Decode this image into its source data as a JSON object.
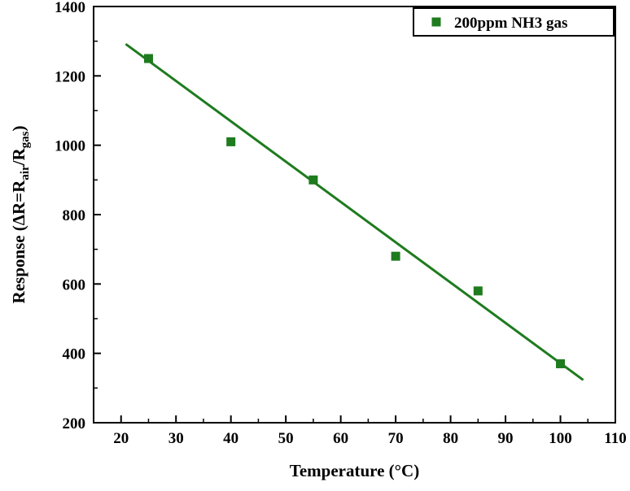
{
  "colors": {
    "accent_green": "#1e7b1e",
    "axis": "#000000",
    "background": "#ffffff"
  },
  "chart_data": {
    "type": "scatter",
    "title": "",
    "xlabel": "Temperature (°C)",
    "ylabel_parts": [
      {
        "t": "Response (",
        "sub": false
      },
      {
        "t": "ΔR=R",
        "sub": false
      },
      {
        "t": "air",
        "sub": true
      },
      {
        "t": "/R",
        "sub": false
      },
      {
        "t": "gas",
        "sub": true
      },
      {
        "t": ")",
        "sub": false
      }
    ],
    "xlim": [
      15,
      110
    ],
    "ylim": [
      200,
      1400
    ],
    "x_ticks": [
      20,
      30,
      40,
      50,
      60,
      70,
      80,
      90,
      100,
      110
    ],
    "y_ticks": [
      200,
      400,
      600,
      800,
      1000,
      1200,
      1400
    ],
    "x_minor_step": 5,
    "y_minor_step": 100,
    "grid": false,
    "series": [
      {
        "name": "linear fit",
        "kind": "line",
        "color": "#1e7b1e",
        "x": [
          21,
          104
        ],
        "y": [
          1290,
          325
        ]
      },
      {
        "name": "200ppm NH3 gas",
        "kind": "scatter",
        "marker": "square",
        "color": "#1e7b1e",
        "x": [
          25,
          40,
          55,
          70,
          85,
          100
        ],
        "y": [
          1250,
          1010,
          900,
          680,
          580,
          370
        ]
      }
    ],
    "legend": {
      "position": "top-right",
      "entries": [
        {
          "label": "200ppm NH3 gas",
          "marker": "square",
          "color": "#1e7b1e"
        }
      ]
    }
  }
}
